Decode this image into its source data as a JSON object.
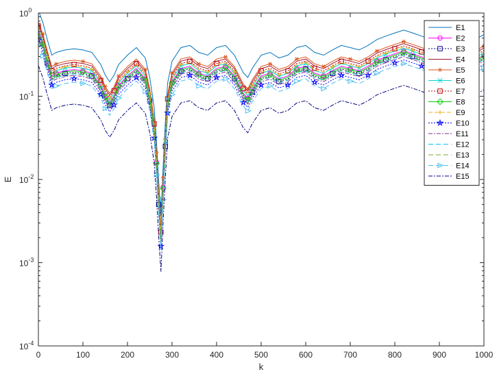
{
  "chart_data": {
    "type": "line",
    "title": "",
    "xlabel": "k",
    "ylabel": "E",
    "xlim": [
      0,
      1000
    ],
    "ylim": [
      0.0001,
      1
    ],
    "yscale": "log",
    "grid": false,
    "legend_position": "top-right",
    "x_ticks": [
      "0",
      "100",
      "200",
      "300",
      "400",
      "500",
      "600",
      "700",
      "800",
      "900",
      "1000"
    ],
    "y_ticks": [
      {
        "base": "10",
        "exp": "-4"
      },
      {
        "base": "10",
        "exp": "-3"
      },
      {
        "base": "10",
        "exp": "-2"
      },
      {
        "base": "10",
        "exp": "-1"
      },
      {
        "base": "10",
        "exp": "0"
      }
    ],
    "x": [
      0,
      10,
      20,
      30,
      40,
      60,
      80,
      100,
      120,
      140,
      150,
      160,
      170,
      180,
      200,
      220,
      240,
      250,
      260,
      265,
      270,
      275,
      280,
      285,
      290,
      300,
      320,
      340,
      360,
      380,
      400,
      420,
      440,
      460,
      470,
      480,
      500,
      520,
      540,
      560,
      580,
      600,
      620,
      640,
      660,
      680,
      700,
      720,
      740,
      760,
      780,
      800,
      820,
      840,
      860,
      880,
      900,
      920,
      940,
      960,
      980,
      1000
    ],
    "base_values": [
      0.45,
      0.32,
      0.2,
      0.13,
      0.14,
      0.15,
      0.155,
      0.15,
      0.14,
      0.1,
      0.075,
      0.062,
      0.075,
      0.1,
      0.13,
      0.16,
      0.12,
      0.07,
      0.03,
      0.012,
      0.004,
      0.0015,
      0.006,
      0.02,
      0.06,
      0.11,
      0.16,
      0.17,
      0.14,
      0.13,
      0.16,
      0.17,
      0.13,
      0.08,
      0.07,
      0.09,
      0.13,
      0.14,
      0.12,
      0.13,
      0.16,
      0.17,
      0.14,
      0.13,
      0.15,
      0.17,
      0.16,
      0.15,
      0.17,
      0.2,
      0.22,
      0.24,
      0.26,
      0.24,
      0.22,
      0.2,
      0.19,
      0.2,
      0.23,
      0.22,
      0.2,
      0.23
    ],
    "series": [
      {
        "name": "E1",
        "factor": 2.4,
        "color": "#0072BD",
        "dash": "",
        "marker": "none"
      },
      {
        "name": "E2",
        "factor": 1.35,
        "color": "#FF00FF",
        "dash": "",
        "marker": "circle"
      },
      {
        "name": "E3",
        "factor": 1.25,
        "color": "#00008B",
        "dash": "2,2",
        "marker": "square"
      },
      {
        "name": "E4",
        "factor": 1.65,
        "color": "#A2142F",
        "dash": "",
        "marker": "none"
      },
      {
        "name": "E5",
        "factor": 1.75,
        "color": "#D95319",
        "dash": "",
        "marker": "asterisk"
      },
      {
        "name": "E6",
        "factor": 1.45,
        "color": "#00D5D5",
        "dash": "",
        "marker": "x"
      },
      {
        "name": "E7",
        "factor": 1.55,
        "color": "#C00000",
        "dash": "2,2",
        "marker": "square"
      },
      {
        "name": "E8",
        "factor": 1.3,
        "color": "#00CC00",
        "dash": "",
        "marker": "diamond"
      },
      {
        "name": "E9",
        "factor": 1.5,
        "color": "#EDB120",
        "dash": "6,3",
        "marker": "plus"
      },
      {
        "name": "E10",
        "factor": 1.05,
        "color": "#0000FF",
        "dash": "2,2",
        "marker": "star"
      },
      {
        "name": "E11",
        "factor": 1.15,
        "color": "#7E2F8E",
        "dash": "6,2,2,2",
        "marker": "none"
      },
      {
        "name": "E12",
        "factor": 1.2,
        "color": "#00BFFF",
        "dash": "7,4",
        "marker": "none"
      },
      {
        "name": "E13",
        "factor": 1.22,
        "color": "#77AC30",
        "dash": "7,4",
        "marker": "none"
      },
      {
        "name": "E14",
        "factor": 0.95,
        "color": "#4DBEEE",
        "dash": "7,4",
        "marker": "triangle-right"
      },
      {
        "name": "E15",
        "factor": 0.52,
        "color": "#000080",
        "dash": "6,2,2,2",
        "marker": "none"
      }
    ]
  }
}
